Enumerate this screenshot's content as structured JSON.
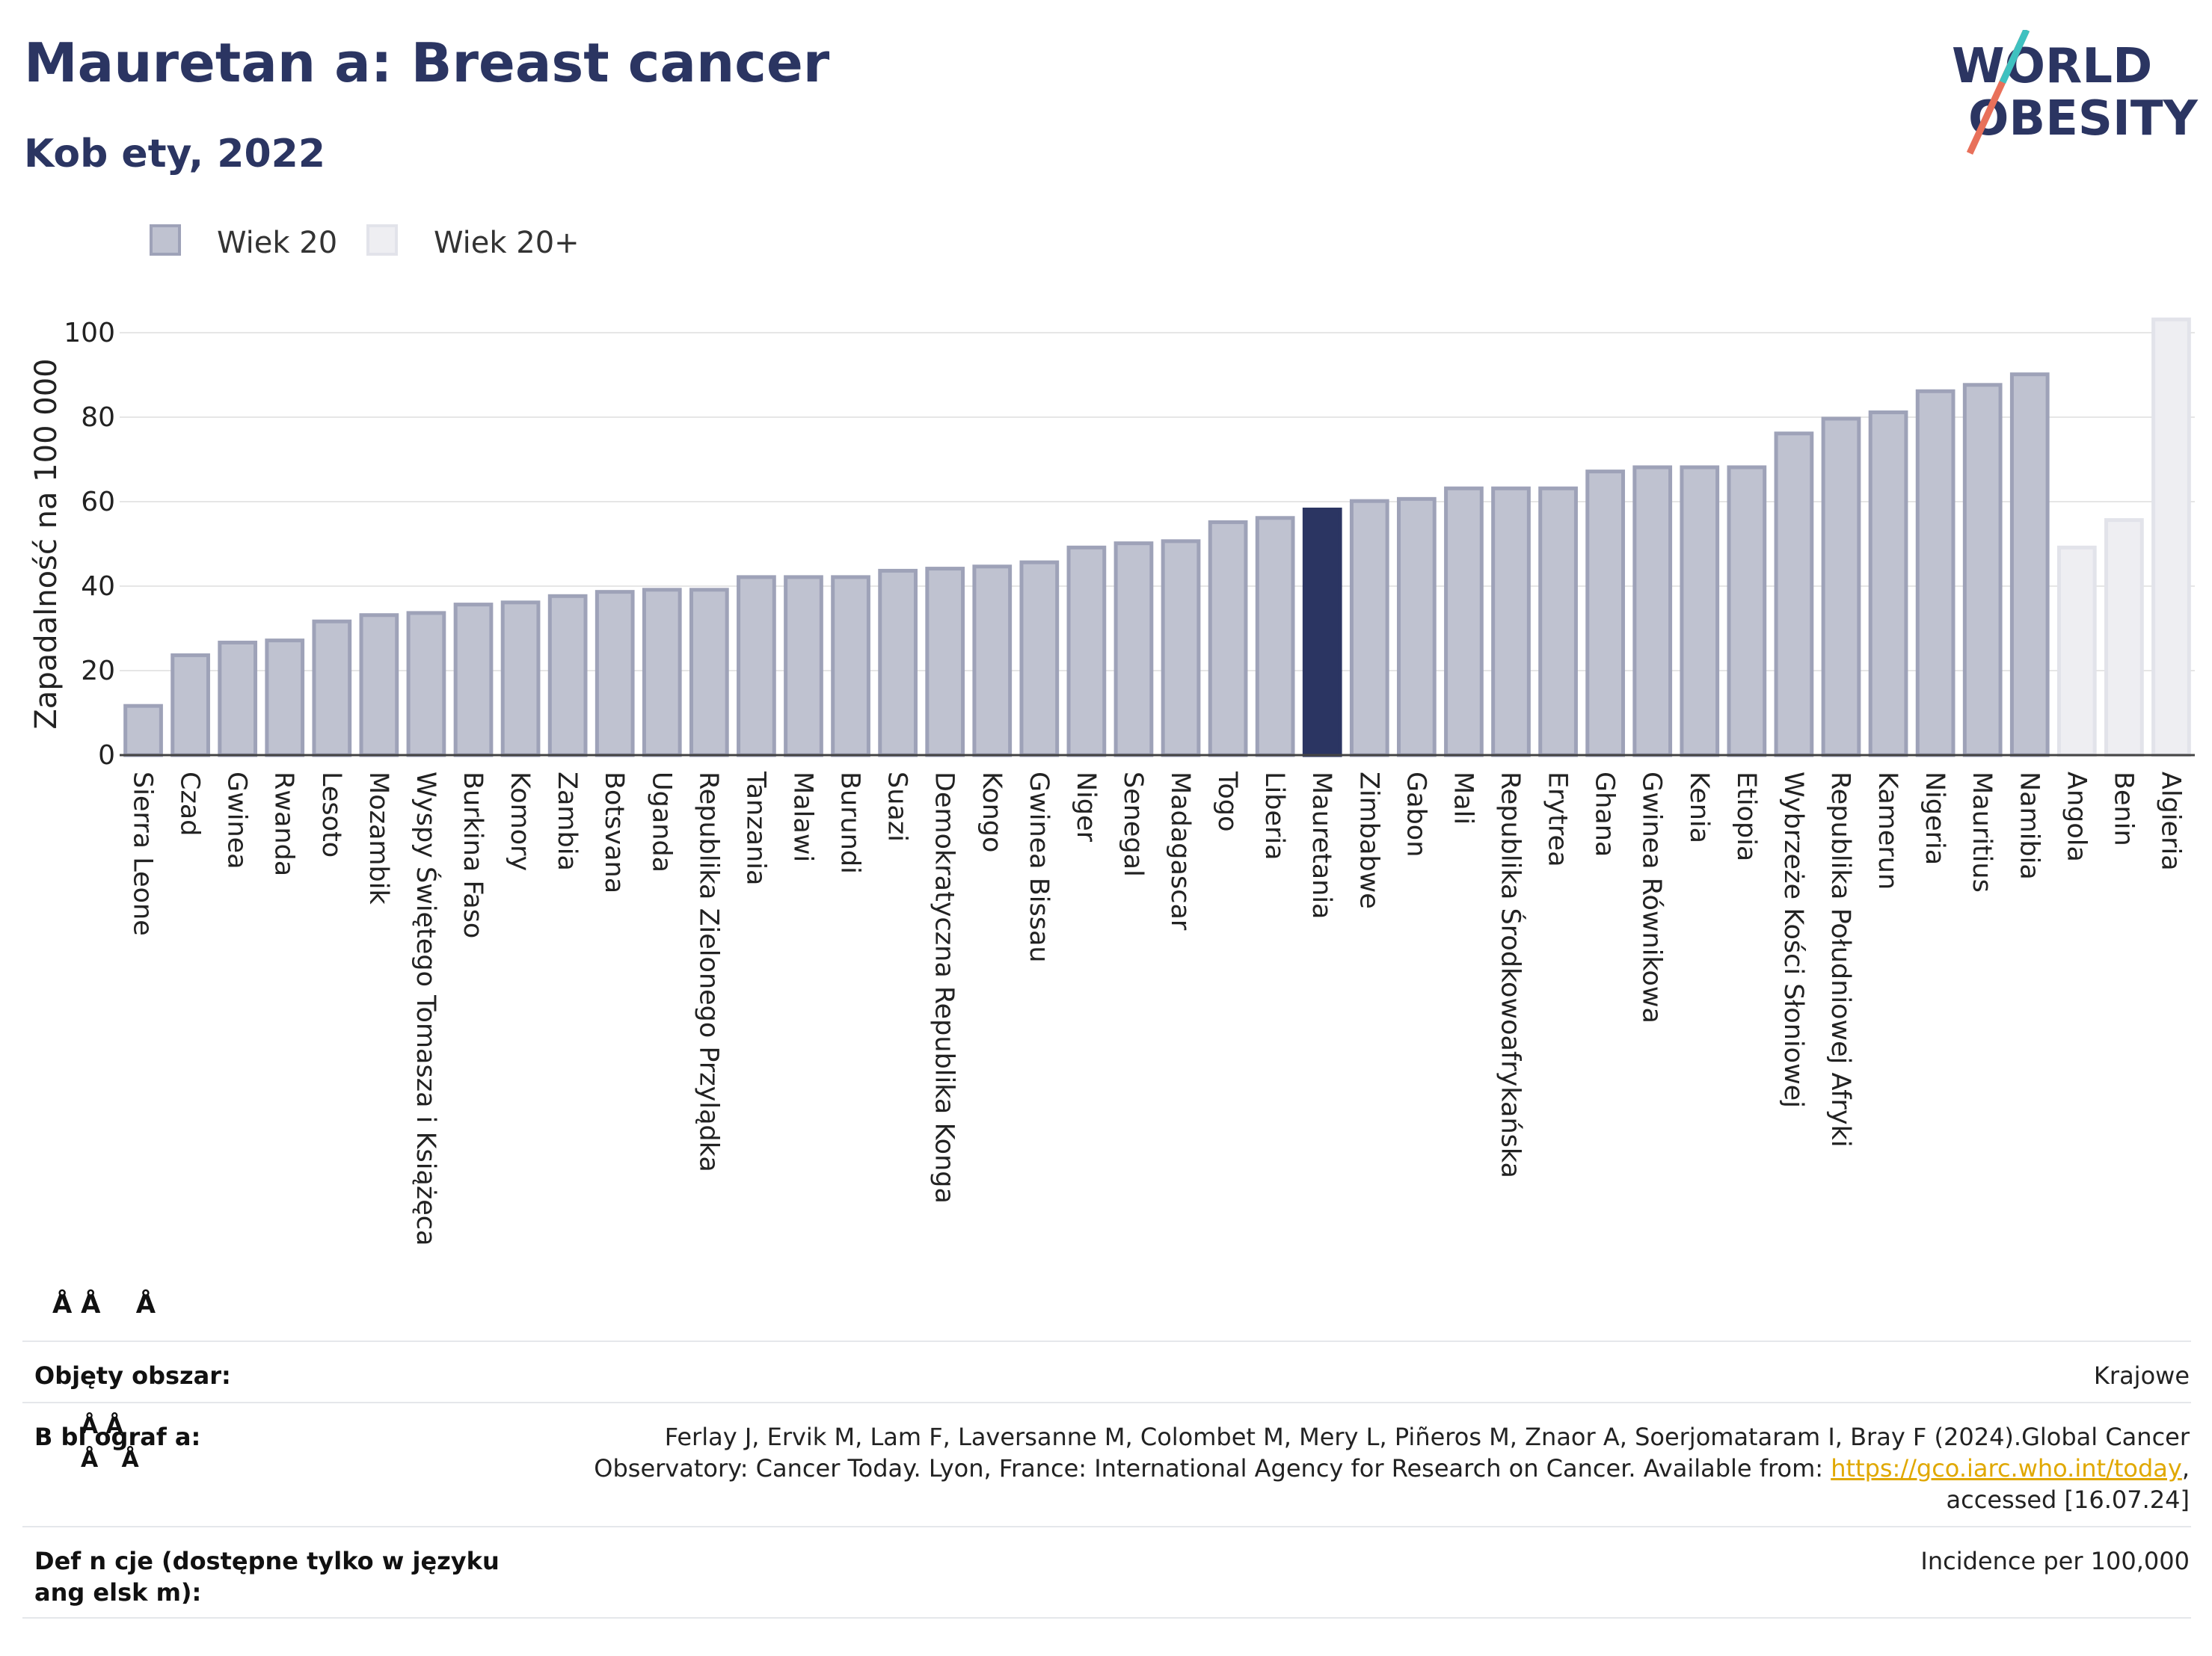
{
  "title": "Mauretan a: Breast cancer",
  "subtitle": "Kob ety, 2022",
  "logo": {
    "line1": "WORLD",
    "line2": "OBESITY"
  },
  "legend": [
    {
      "label": "Wiek 20",
      "fill": "#bfc2d0",
      "stroke": "#9ea2b8"
    },
    {
      "label": "Wiek 20+",
      "fill": "#eeeef2",
      "stroke": "#e2e3ea"
    }
  ],
  "colors": {
    "highlight": "#2b3562",
    "bar": "#bfc2d0",
    "bar_stroke": "#9ea2b8",
    "bar_light": "#eeeef2",
    "bar_light_stroke": "#e2e3ea",
    "grid": "#e6e6e6",
    "link": "#e0a800"
  },
  "chart_data": {
    "type": "bar",
    "ylabel": "Zapadalność na 100 000",
    "ylim": [
      0,
      105
    ],
    "yticks": [
      0,
      20,
      40,
      60,
      80,
      100
    ],
    "grid": true,
    "legend_position": "top-left",
    "categories": [
      "Sierra Leone",
      "Czad",
      "Gwinea",
      "Rwanda",
      "Lesoto",
      "Mozambik",
      "Wyspy Świętego Tomasza i Książęca",
      "Burkina Faso",
      "Komory",
      "Zambia",
      "Botsvana",
      "Uganda",
      "Republika Zielonego Przylądka",
      "Tanzania",
      "Malawi",
      "Burundi",
      "Suazi",
      "Demokratyczna Republika Konga",
      "Kongo",
      "Gwinea Bissau",
      "Niger",
      "Senegal",
      "Madagascar",
      "Togo",
      "Liberia",
      "Mauretania",
      "Zimbabwe",
      "Gabon",
      "Mali",
      "Republika Środkowoafrykańska",
      "Erytrea",
      "Ghana",
      "Gwinea Równikowa",
      "Kenia",
      "Etiopia",
      "Wybrzeże Kości Słoniowej",
      "Republika Południowej Afryki",
      "Kamerun",
      "Nigeria",
      "Mauritius",
      "Namibia",
      "Angola",
      "Benin",
      "Algieria"
    ],
    "values": [
      12,
      24,
      27,
      27.5,
      32,
      33.5,
      34,
      36,
      36.5,
      38,
      39,
      39.5,
      39.5,
      42.5,
      42.5,
      42.5,
      44,
      44.5,
      45,
      46,
      49.5,
      50.5,
      51,
      55.5,
      56.5,
      58.5,
      60.5,
      61,
      63.5,
      63.5,
      63.5,
      67.5,
      68.5,
      68.5,
      68.5,
      76.5,
      80,
      81.5,
      86.5,
      88,
      90.5,
      49.5,
      56,
      103.5
    ],
    "series_group": [
      "Wiek 20",
      "Wiek 20",
      "Wiek 20",
      "Wiek 20",
      "Wiek 20",
      "Wiek 20",
      "Wiek 20",
      "Wiek 20",
      "Wiek 20",
      "Wiek 20",
      "Wiek 20",
      "Wiek 20",
      "Wiek 20",
      "Wiek 20",
      "Wiek 20",
      "Wiek 20",
      "Wiek 20",
      "Wiek 20",
      "Wiek 20",
      "Wiek 20",
      "Wiek 20",
      "Wiek 20",
      "Wiek 20",
      "Wiek 20",
      "Wiek 20",
      "Wiek 20",
      "Wiek 20",
      "Wiek 20",
      "Wiek 20",
      "Wiek 20",
      "Wiek 20",
      "Wiek 20",
      "Wiek 20",
      "Wiek 20",
      "Wiek 20",
      "Wiek 20",
      "Wiek 20",
      "Wiek 20",
      "Wiek 20",
      "Wiek 20",
      "Wiek 20",
      "Wiek 20+",
      "Wiek 20+",
      "Wiek 20+"
    ],
    "highlight": "Mauretania"
  },
  "glyph_rows": {
    "row1": "Å Å    Å",
    "row2a": "Å Å",
    "row2b": "Å   Å"
  },
  "footer": {
    "area_label": "Objęty obszar:",
    "area_value": "Krajowe",
    "bib_label": "B bl ograf a:",
    "bib_line1": "Ferlay J, Ervik M, Lam F, Laversanne M, Colombet M, Mery L, Piñeros M, Znaor A, Soerjomataram I, Bray F (2024).Global Cancer",
    "bib_line2": "Observatory: Cancer Today. Lyon, France: International Agency for Research on Cancer. Available from:",
    "bib_link": "https://gco.iarc.who.int/today",
    "bib_line2_end": ",",
    "bib_line3": "accessed [16.07.24]",
    "def_label_line1": "Def n cje (dostępne tylko w języku",
    "def_label_line2": "ang elsk m):",
    "def_value": "Incidence per 100,000"
  }
}
